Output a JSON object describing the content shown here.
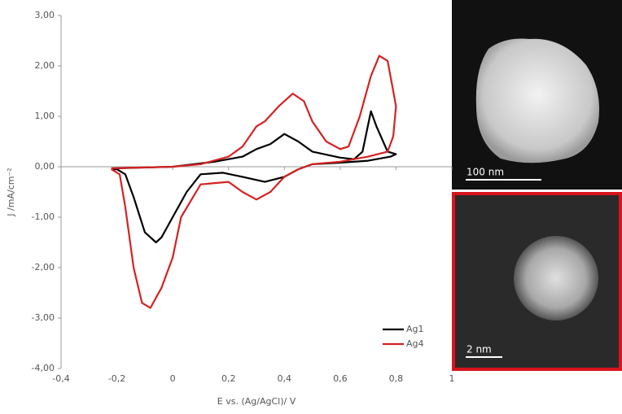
{
  "chart_data": {
    "type": "line",
    "x_label": "E vs. (Ag/AgCl)/ V",
    "y_label": "J /mA/cm⁻²",
    "xlim": [
      -0.4,
      1
    ],
    "xticks": [
      {
        "value": -0.4,
        "label": "-0,4"
      },
      {
        "value": -0.2,
        "label": "-0,2"
      },
      0,
      {
        "value": 0.2,
        "label": "0,2"
      },
      {
        "value": 0.4,
        "label": "0,4"
      },
      {
        "value": 0.6,
        "label": "0,6"
      },
      {
        "value": 0.8,
        "label": "0,8"
      },
      1
    ],
    "ylim": [
      -4,
      3
    ],
    "yticks": [
      {
        "value": 3,
        "label": "3,00"
      },
      {
        "value": 2,
        "label": "2,00"
      },
      {
        "value": 1,
        "label": "1,00"
      },
      {
        "value": 0,
        "label": "0,00"
      },
      {
        "value": -1,
        "label": "-1,00"
      },
      {
        "value": -2,
        "label": "-2,00"
      },
      {
        "value": -3,
        "label": "-3,00"
      },
      {
        "value": -4,
        "label": "-4,00"
      }
    ],
    "legend": "lower right",
    "series": [
      {
        "name": "Ag1",
        "color": "#000000",
        "x": [
          -0.22,
          -0.2,
          0,
          0.15,
          0.25,
          0.3,
          0.35,
          0.4,
          0.45,
          0.5,
          0.6,
          0.65,
          0.68,
          0.71,
          0.73,
          0.77,
          0.8,
          0.78,
          0.7,
          0.6,
          0.5,
          0.45,
          0.4,
          0.33,
          0.25,
          0.18,
          0.1,
          0.05,
          0,
          -0.04,
          -0.06,
          -0.1,
          -0.14,
          -0.17,
          -0.2,
          -0.22
        ],
        "values": [
          -0.05,
          -0.03,
          0,
          0.1,
          0.2,
          0.35,
          0.45,
          0.65,
          0.5,
          0.3,
          0.18,
          0.15,
          0.3,
          1.1,
          0.8,
          0.3,
          0.25,
          0.2,
          0.12,
          0.08,
          0.05,
          -0.05,
          -0.2,
          -0.3,
          -0.2,
          -0.12,
          -0.15,
          -0.5,
          -1.0,
          -1.4,
          -1.5,
          -1.3,
          -0.6,
          -0.15,
          -0.05,
          -0.05
        ]
      },
      {
        "name": "Ag4",
        "color": "#d42222",
        "x": [
          -0.22,
          0,
          0.1,
          0.2,
          0.25,
          0.3,
          0.33,
          0.38,
          0.43,
          0.47,
          0.5,
          0.55,
          0.6,
          0.63,
          0.67,
          0.71,
          0.74,
          0.77,
          0.79,
          0.8,
          0.79,
          0.77,
          0.7,
          0.6,
          0.5,
          0.45,
          0.4,
          0.35,
          0.3,
          0.25,
          0.2,
          0.1,
          0.03,
          0,
          -0.04,
          -0.08,
          -0.11,
          -0.14,
          -0.17,
          -0.19,
          -0.22
        ],
        "values": [
          -0.03,
          0,
          0.05,
          0.2,
          0.4,
          0.8,
          0.9,
          1.2,
          1.45,
          1.3,
          0.9,
          0.5,
          0.35,
          0.4,
          1.0,
          1.8,
          2.2,
          2.1,
          1.5,
          1.2,
          0.6,
          0.3,
          0.2,
          0.1,
          0.05,
          -0.05,
          -0.2,
          -0.5,
          -0.65,
          -0.5,
          -0.3,
          -0.35,
          -1.0,
          -1.8,
          -2.4,
          -2.8,
          -2.7,
          -2.0,
          -0.8,
          -0.15,
          -0.05
        ]
      }
    ],
    "annotations": [
      "100 nm",
      "2 nm"
    ]
  }
}
